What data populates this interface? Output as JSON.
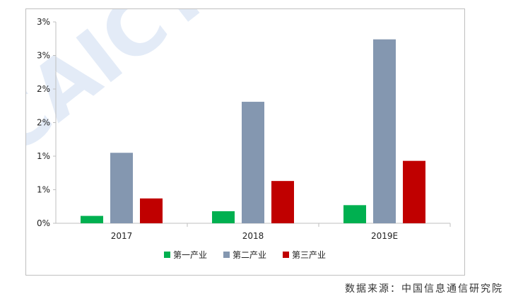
{
  "chart_data": {
    "type": "bar",
    "categories": [
      "2017",
      "2018",
      "2019E"
    ],
    "series": [
      {
        "name": "第一产业",
        "values": [
          0.11,
          0.18,
          0.27
        ],
        "color": "#00b050"
      },
      {
        "name": "第二产业",
        "values": [
          1.05,
          1.81,
          2.74
        ],
        "color": "#8497b0"
      },
      {
        "name": "第三产业",
        "values": [
          0.37,
          0.63,
          0.93
        ],
        "color": "#c00000"
      }
    ],
    "ylim": [
      0,
      3
    ],
    "yticks": [
      0,
      0.5,
      1,
      1.5,
      2,
      2.5,
      3
    ],
    "ytick_labels": [
      "0%",
      "1%",
      "1%",
      "2%",
      "2%",
      "3%",
      "3%"
    ],
    "grid": false,
    "legend_position": "bottom"
  },
  "watermark": "CAICT",
  "source_text": "数据来源：中国信息通信研究院"
}
